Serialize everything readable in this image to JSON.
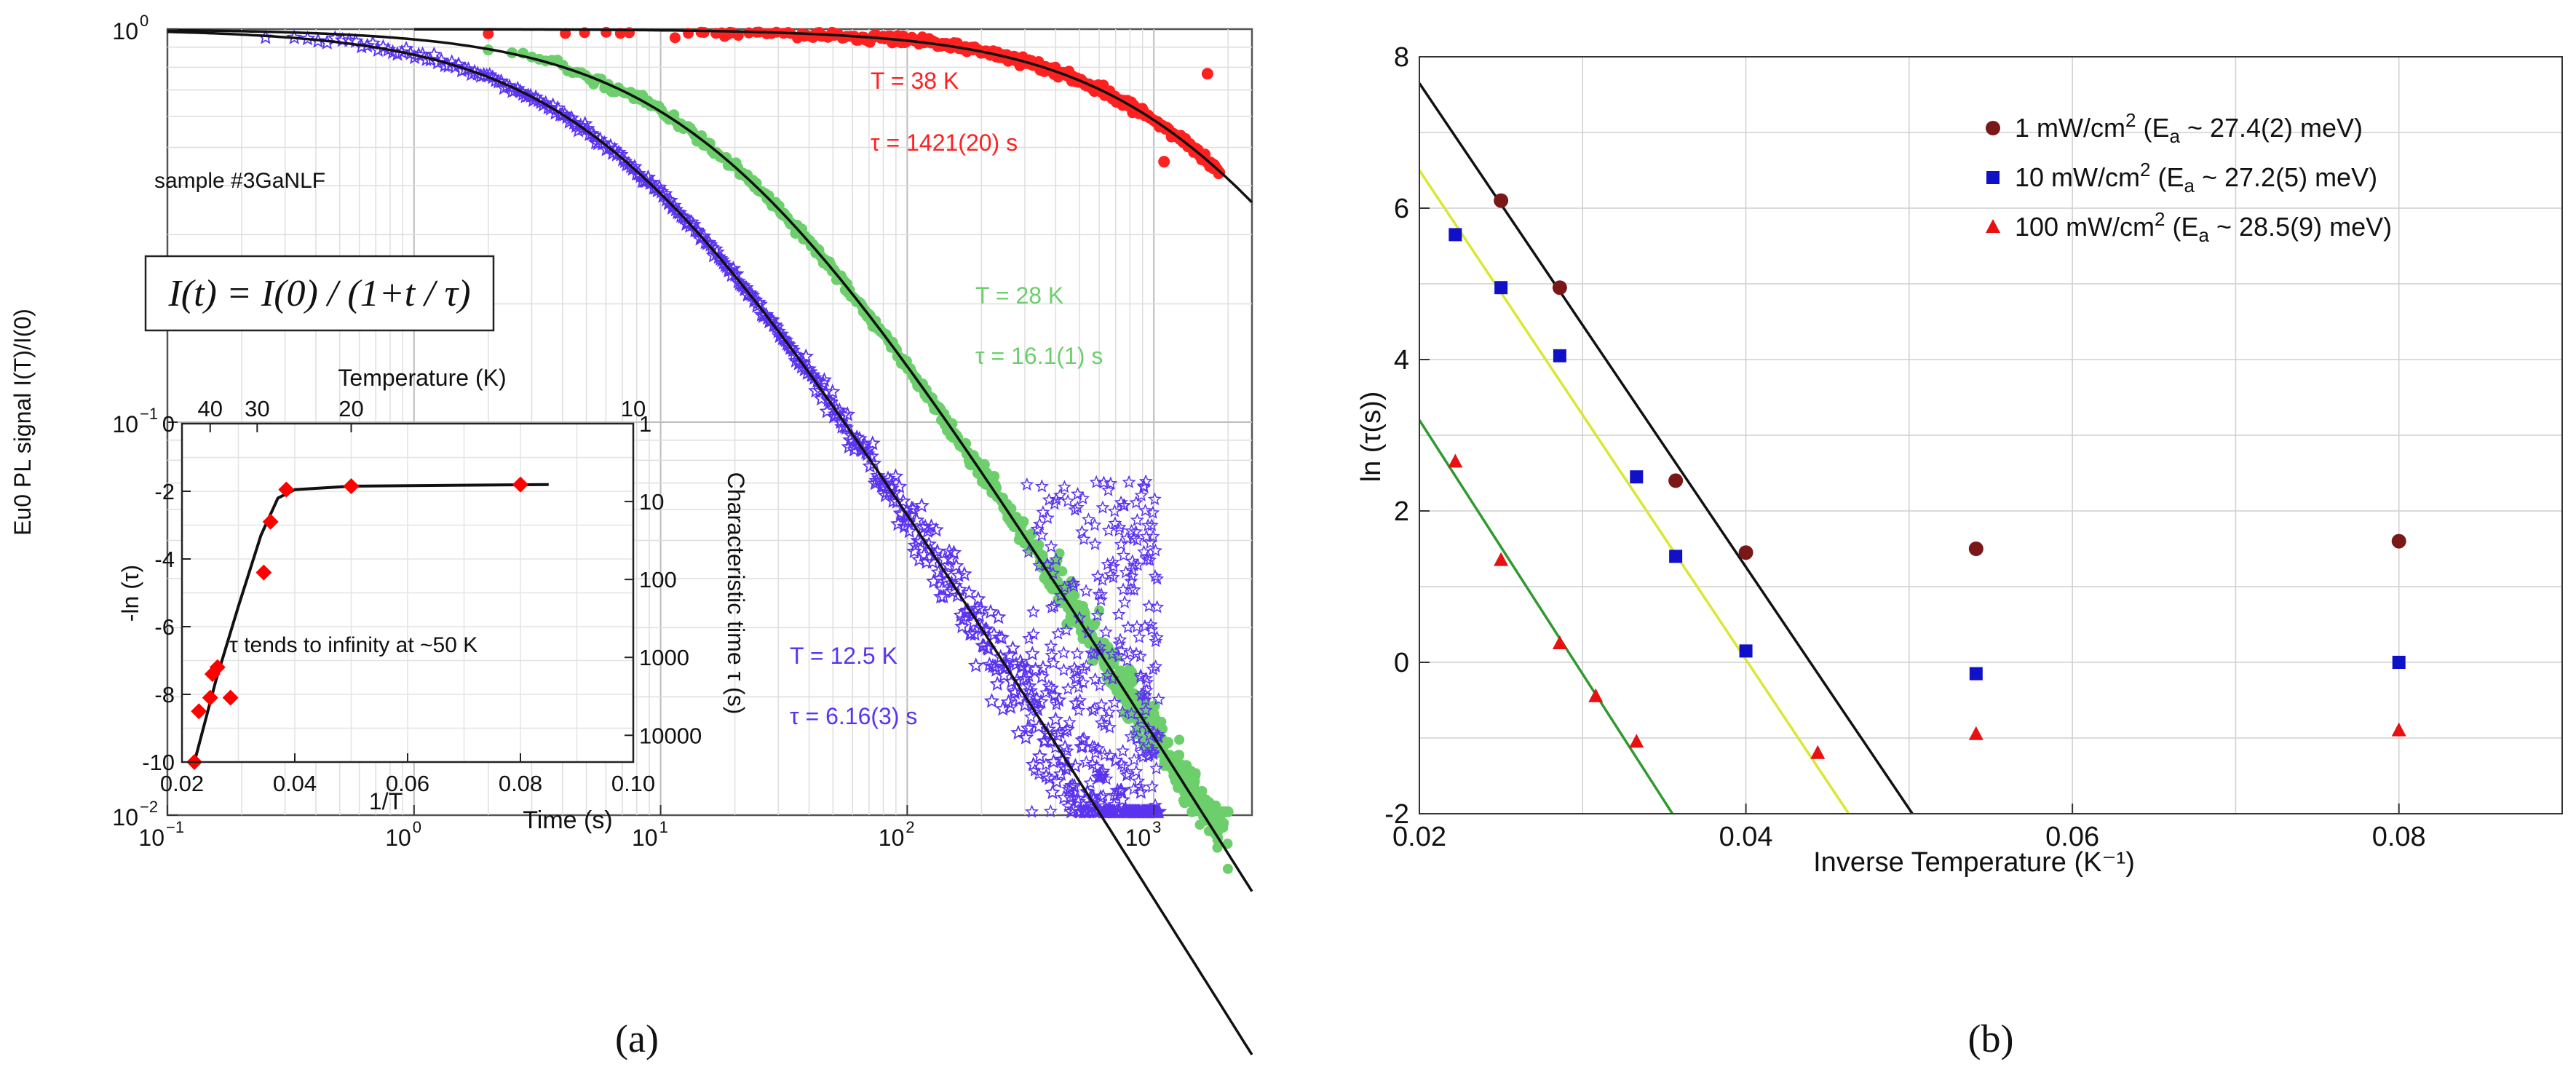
{
  "panel_labels": {
    "a": "(a)",
    "b": "(b)"
  },
  "chart_data": [
    {
      "id": "a-main",
      "type": "scatter",
      "scale": {
        "x": "log",
        "y": "log"
      },
      "xlabel": "Time (s)",
      "ylabel": "Eu0 PL signal I(T)/I(0)",
      "xlim": [
        0.1,
        2500
      ],
      "ylim": [
        0.01,
        1.0
      ],
      "x_ticks": [
        {
          "v": 0.1,
          "base": "10",
          "exp": "−1"
        },
        {
          "v": 1,
          "base": "10",
          "exp": "0"
        },
        {
          "v": 10,
          "base": "10",
          "exp": "1"
        },
        {
          "v": 100,
          "base": "10",
          "exp": "2"
        },
        {
          "v": 1000,
          "base": "10",
          "exp": "3"
        }
      ],
      "y_ticks": [
        {
          "v": 0.01,
          "base": "10",
          "exp": "−2"
        },
        {
          "v": 0.1,
          "base": "10",
          "exp": "−1"
        },
        {
          "v": 1,
          "base": "10",
          "exp": "0"
        }
      ],
      "sample_label": "sample #3GaNLF",
      "formula": "I(t) = I(0) / (1+t / τ)",
      "series": [
        {
          "name": "T = 38 K",
          "temperature_label": "T = 38 K",
          "tau_label": "τ = 1421(20) s",
          "tau": 1421,
          "color": "#ff2020",
          "marker": "circle",
          "t_start": 2,
          "t_end": 1850,
          "outliers": [
            {
              "x": 1650,
              "y": 0.77
            },
            {
              "x": 1100,
              "y": 0.46
            }
          ]
        },
        {
          "name": "T = 28 K",
          "temperature_label": "T = 28 K",
          "tau_label": "τ = 16.1(1) s",
          "tau": 16.1,
          "color": "#6ccf6c",
          "marker": "circle",
          "t_start": 2,
          "t_end": 2000
        },
        {
          "name": "T = 12.5 K",
          "temperature_label": "T = 12.5 K",
          "tau_label": "τ = 6.16(3) s",
          "tau": 6.16,
          "color": "#5b33f0",
          "marker": "star",
          "t_start": 0.25,
          "t_end": 1050
        }
      ],
      "fits": [
        {
          "tau": 1421,
          "color": "#111111"
        },
        {
          "tau": 16.1,
          "color": "#111111"
        },
        {
          "tau": 6.16,
          "color": "#111111"
        }
      ]
    },
    {
      "id": "a-inset",
      "type": "scatter",
      "xlabel": "1/T",
      "ylabel": "-ln (τ)",
      "top_label": "Temperature (K)",
      "right_label": "Characteristic time τ (s)",
      "xlim": [
        0.02,
        0.1
      ],
      "ylim": [
        -10,
        0
      ],
      "x_ticks": [
        "0.02",
        "0.04",
        "0.06",
        "0.08",
        "0.10"
      ],
      "y_ticks": [
        "0",
        "-2",
        "-4",
        "-6",
        "-8",
        "-10"
      ],
      "top_ticks": [
        {
          "T": 40,
          "label": "40"
        },
        {
          "T": 30,
          "label": "30"
        },
        {
          "T": 20,
          "label": "20"
        },
        {
          "T": 10,
          "label": "10"
        }
      ],
      "right_ticks": [
        {
          "v": 1,
          "label": "1"
        },
        {
          "v": 10,
          "label": "10"
        },
        {
          "v": 100,
          "label": "100"
        },
        {
          "v": 1000,
          "label": "1000"
        },
        {
          "v": 10000,
          "label": "10000"
        }
      ],
      "annotation": "τ tends to infinity at ~50 K",
      "points": [
        {
          "x": 0.0222,
          "y": -10.0
        },
        {
          "x": 0.023,
          "y": -8.5
        },
        {
          "x": 0.025,
          "y": -8.1
        },
        {
          "x": 0.0254,
          "y": -7.4
        },
        {
          "x": 0.0263,
          "y": -7.2
        },
        {
          "x": 0.0286,
          "y": -8.1
        },
        {
          "x": 0.0345,
          "y": -4.4
        },
        {
          "x": 0.0357,
          "y": -2.9
        },
        {
          "x": 0.0385,
          "y": -1.95
        },
        {
          "x": 0.05,
          "y": -1.85
        },
        {
          "x": 0.08,
          "y": -1.8
        }
      ],
      "curve": [
        [
          0.0222,
          -10.0
        ],
        [
          0.026,
          -7.6
        ],
        [
          0.03,
          -5.4
        ],
        [
          0.034,
          -3.3
        ],
        [
          0.037,
          -2.2
        ],
        [
          0.04,
          -1.95
        ],
        [
          0.05,
          -1.85
        ],
        [
          0.07,
          -1.82
        ],
        [
          0.085,
          -1.8
        ]
      ],
      "color": "#ff0000"
    },
    {
      "id": "b",
      "type": "scatter",
      "xlabel": "Inverse Temperature (K⁻¹)",
      "ylabel": "ln (τ(s))",
      "xlim": [
        0.02,
        0.09
      ],
      "ylim": [
        -2,
        8
      ],
      "x_ticks": [
        "0.02",
        "0.04",
        "0.06",
        "0.08"
      ],
      "y_ticks": [
        "-2",
        "0",
        "2",
        "4",
        "6",
        "8"
      ],
      "series": [
        {
          "name": "1 mW/cm² (Ea ~ 27.4(2) meV)",
          "legend_main": "1 mW/cm",
          "legend_sup": "2",
          "legend_rest": " (E",
          "legend_sub": "a",
          "legend_end": " ~ 27.4(2) meV)",
          "color": "#7a1818",
          "marker": "circle",
          "points": [
            [
              0.025,
              6.1
            ],
            [
              0.0286,
              4.95
            ],
            [
              0.0357,
              2.4
            ],
            [
              0.04,
              1.45
            ],
            [
              0.0541,
              1.5
            ],
            [
              0.08,
              1.6
            ]
          ],
          "fit": {
            "x0": 0.02,
            "y0": 7.65,
            "x1": 0.0502,
            "y1": -2.0,
            "color": "#111111"
          }
        },
        {
          "name": "10 mW/cm² (Ea ~ 27.2(5) meV)",
          "legend_main": "10 mW/cm",
          "legend_sup": "2",
          "legend_rest": " (E",
          "legend_sub": "a",
          "legend_end": " ~ 27.2(5) meV)",
          "color": "#1010c8",
          "marker": "square",
          "points": [
            [
              0.0222,
              5.65
            ],
            [
              0.025,
              4.95
            ],
            [
              0.0286,
              4.05
            ],
            [
              0.0333,
              2.45
            ],
            [
              0.0357,
              1.4
            ],
            [
              0.04,
              0.15
            ],
            [
              0.0541,
              -0.15
            ],
            [
              0.08,
              0.0
            ]
          ],
          "fit": {
            "x0": 0.02,
            "y0": 6.5,
            "x1": 0.0463,
            "y1": -2.0,
            "color": "#d8e832"
          }
        },
        {
          "name": "100 mW/cm² (Ea ~ 28.5(9) meV)",
          "legend_main": "100 mW/cm",
          "legend_sup": "2",
          "legend_rest": " (E",
          "legend_sub": "a",
          "legend_end": " ~ 28.5(9) meV)",
          "color": "#e81010",
          "marker": "triangle",
          "points": [
            [
              0.0222,
              2.65
            ],
            [
              0.025,
              1.35
            ],
            [
              0.0286,
              0.25
            ],
            [
              0.0308,
              -0.45
            ],
            [
              0.0333,
              -1.05
            ],
            [
              0.0444,
              -1.2
            ],
            [
              0.0541,
              -0.95
            ],
            [
              0.08,
              -0.9
            ]
          ],
          "fit": {
            "x0": 0.02,
            "y0": 3.2,
            "x1": 0.0355,
            "y1": -2.0,
            "color": "#2e9a2e"
          }
        }
      ]
    }
  ]
}
